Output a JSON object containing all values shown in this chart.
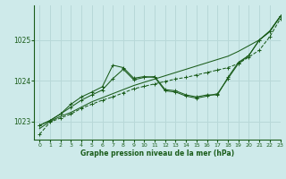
{
  "xlabel": "Graphe pression niveau de la mer (hPa)",
  "background_color": "#ceeaea",
  "grid_color": "#b8d8d8",
  "line_color": "#1a5c1a",
  "xlim": [
    -0.5,
    23
  ],
  "ylim": [
    1022.55,
    1025.85
  ],
  "yticks": [
    1023,
    1024,
    1025
  ],
  "xticks": [
    0,
    1,
    2,
    3,
    4,
    5,
    6,
    7,
    8,
    9,
    10,
    11,
    12,
    13,
    14,
    15,
    16,
    17,
    18,
    19,
    20,
    21,
    22,
    23
  ],
  "hours": [
    0,
    1,
    2,
    3,
    4,
    5,
    6,
    7,
    8,
    9,
    10,
    11,
    12,
    13,
    14,
    15,
    16,
    17,
    18,
    19,
    20,
    21,
    22,
    23
  ],
  "line_upper": [
    1022.82,
    1023.0,
    1023.12,
    1023.22,
    1023.35,
    1023.48,
    1023.58,
    1023.68,
    1023.78,
    1023.88,
    1023.96,
    1024.04,
    1024.12,
    1024.2,
    1024.28,
    1024.36,
    1024.44,
    1024.52,
    1024.6,
    1024.72,
    1024.86,
    1025.0,
    1025.2,
    1025.58
  ],
  "line_peak1": [
    1022.9,
    1023.02,
    1023.18,
    1023.42,
    1023.6,
    1023.72,
    1023.85,
    1024.38,
    1024.32,
    1024.06,
    1024.1,
    1024.08,
    1023.75,
    1023.72,
    1023.62,
    1023.57,
    1023.62,
    1023.68,
    1024.05,
    1024.42,
    1024.62,
    1025.0,
    1025.22,
    1025.58
  ],
  "line_peak2": [
    1022.9,
    1023.02,
    1023.18,
    1023.35,
    1023.52,
    1023.65,
    1023.77,
    1024.05,
    1024.28,
    1024.02,
    1024.08,
    1024.1,
    1023.78,
    1023.75,
    1023.65,
    1023.6,
    1023.65,
    1023.65,
    1024.08,
    1024.45,
    1024.62,
    1025.0,
    1025.22,
    1025.58
  ],
  "line_lower": [
    1022.68,
    1022.98,
    1023.08,
    1023.18,
    1023.32,
    1023.42,
    1023.52,
    1023.6,
    1023.7,
    1023.8,
    1023.86,
    1023.92,
    1023.98,
    1024.04,
    1024.08,
    1024.14,
    1024.2,
    1024.26,
    1024.32,
    1024.42,
    1024.58,
    1024.75,
    1025.08,
    1025.52
  ]
}
